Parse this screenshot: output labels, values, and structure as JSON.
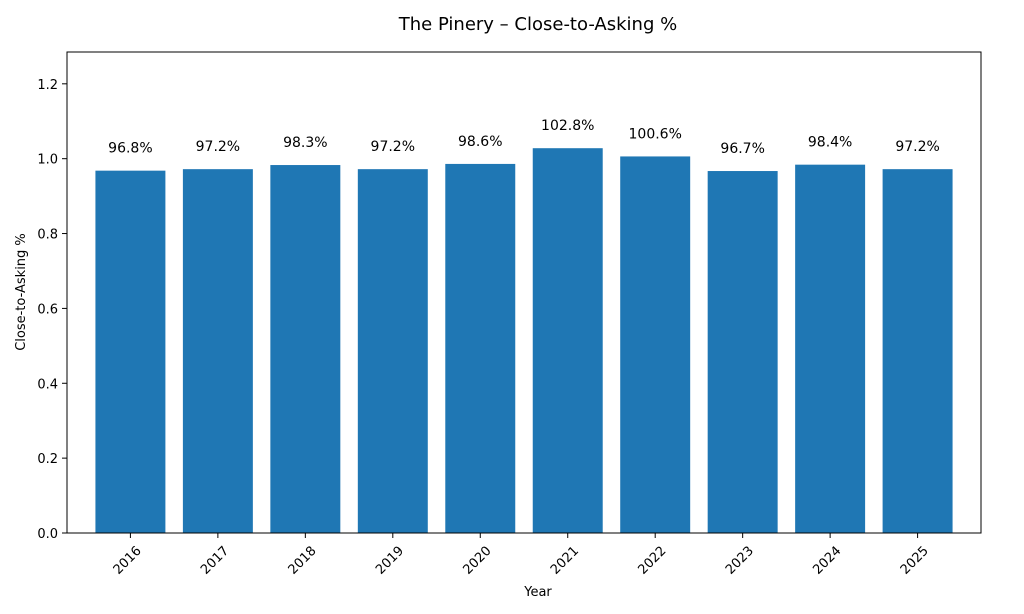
{
  "chart_data": {
    "type": "bar",
    "title": "The Pinery – Close-to-Asking %",
    "xlabel": "Year",
    "ylabel": "Close-to-Asking %",
    "categories": [
      "2016",
      "2017",
      "2018",
      "2019",
      "2020",
      "2021",
      "2022",
      "2023",
      "2024",
      "2025"
    ],
    "values": [
      0.968,
      0.972,
      0.983,
      0.972,
      0.986,
      1.028,
      1.006,
      0.967,
      0.984,
      0.972
    ],
    "data_labels": [
      "96.8%",
      "97.2%",
      "98.3%",
      "97.2%",
      "98.6%",
      "102.8%",
      "100.6%",
      "96.7%",
      "98.4%",
      "97.2%"
    ],
    "ylim": [
      0,
      1.285
    ],
    "yticks": [
      0.0,
      0.2,
      0.4,
      0.6,
      0.8,
      1.0,
      1.2
    ],
    "ytick_labels": [
      "0.0",
      "0.2",
      "0.4",
      "0.6",
      "0.8",
      "1.0",
      "1.2"
    ],
    "xtick_rotation": 45,
    "grid": false,
    "legend": null,
    "bar_color": "#1f77b4"
  }
}
